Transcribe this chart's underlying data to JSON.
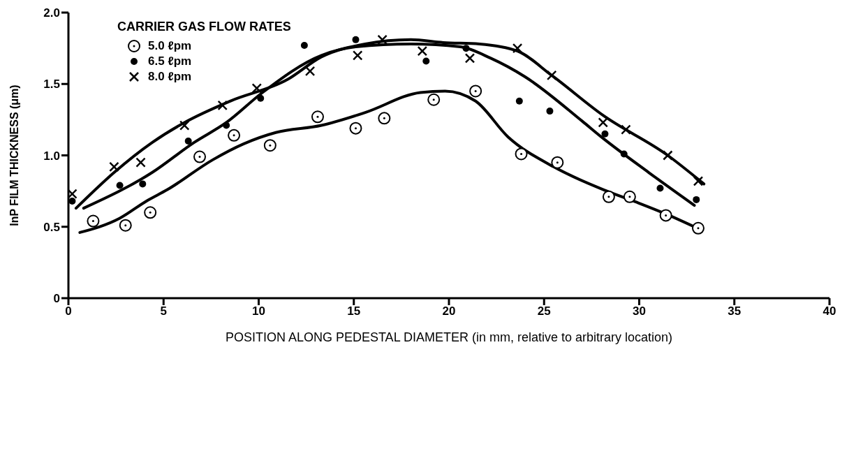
{
  "chart_data": {
    "type": "scatter",
    "xlabel": "POSITION ALONG PEDESTAL DIAMETER (in mm, relative to arbitrary location)",
    "ylabel": "InP FILM THICKNESS (μm)",
    "legend_title": "CARRIER GAS FLOW RATES",
    "legend": "top left",
    "grid": false,
    "xlim": [
      0,
      40
    ],
    "xticks": [
      0,
      5,
      10,
      15,
      20,
      25,
      30,
      35,
      40
    ],
    "ylim": [
      0,
      2
    ],
    "yticks": [
      0,
      0.5,
      {
        "value": 1,
        "label": "1.0"
      },
      1.5,
      {
        "value": 2,
        "label": "2.0"
      }
    ],
    "series": [
      {
        "name": "5.0 ℓpm",
        "color": "#000000",
        "marker": "circle-dot",
        "x": [
          1.3,
          3.0,
          4.3,
          6.9,
          8.7,
          10.6,
          13.1,
          15.1,
          16.6,
          19.2,
          21.4,
          23.8,
          25.7,
          28.4,
          29.5,
          31.4,
          33.1
        ],
        "values": [
          0.54,
          0.51,
          0.6,
          0.99,
          1.14,
          1.07,
          1.27,
          1.19,
          1.26,
          1.39,
          1.45,
          1.01,
          0.95,
          0.71,
          0.71,
          0.58,
          0.49
        ]
      },
      {
        "name": "6.5 ℓpm",
        "color": "#000000",
        "marker": "circle",
        "x": [
          0.2,
          2.7,
          3.9,
          6.3,
          8.3,
          10.1,
          12.4,
          15.1,
          18.8,
          20.9,
          23.7,
          25.3,
          28.2,
          29.2,
          31.1,
          33.0
        ],
        "values": [
          0.68,
          0.79,
          0.8,
          1.1,
          1.21,
          1.4,
          1.77,
          1.81,
          1.66,
          1.75,
          1.38,
          1.31,
          1.15,
          1.01,
          0.77,
          0.69
        ]
      },
      {
        "name": "8.0 ℓpm",
        "color": "#000000",
        "marker": "cross",
        "x": [
          0.2,
          2.4,
          3.8,
          6.1,
          8.1,
          9.9,
          12.7,
          15.2,
          16.5,
          18.6,
          21.1,
          23.6,
          25.4,
          28.1,
          29.3,
          31.5,
          33.1
        ],
        "values": [
          0.73,
          0.92,
          0.95,
          1.21,
          1.35,
          1.47,
          1.59,
          1.7,
          1.81,
          1.73,
          1.68,
          1.75,
          1.56,
          1.23,
          1.18,
          1.0,
          0.82
        ]
      },
      {
        "type": "line",
        "color": "#000000",
        "marker": "none",
        "x": [
          0.6,
          2.7,
          4.1,
          5.2,
          7.6,
          9.2,
          10.9,
          13.3,
          15.6,
          18.5,
          19.8,
          21.4,
          23.1,
          25.5,
          28.3,
          29.9,
          31.4,
          32.9
        ],
        "values": [
          0.46,
          0.56,
          0.68,
          0.76,
          0.97,
          1.08,
          1.16,
          1.21,
          1.3,
          1.44,
          1.45,
          1.38,
          1.13,
          0.92,
          0.75,
          0.67,
          0.59,
          0.5
        ]
      },
      {
        "type": "line",
        "color": "#000000",
        "marker": "none",
        "x": [
          0.8,
          4.4,
          6.6,
          8.3,
          10.2,
          13.3,
          15.1,
          18.0,
          20.6,
          22.2,
          24.0,
          27.0,
          28.0,
          30.5,
          32.9
        ],
        "values": [
          0.63,
          0.88,
          1.09,
          1.23,
          1.44,
          1.7,
          1.76,
          1.78,
          1.76,
          1.68,
          1.55,
          1.24,
          1.13,
          0.88,
          0.65
        ]
      },
      {
        "type": "line",
        "color": "#000000",
        "marker": "none",
        "x": [
          0.4,
          2.4,
          4.4,
          6.1,
          8.5,
          11.5,
          13.3,
          15.6,
          18.0,
          19.7,
          21.6,
          23.6,
          25.4,
          28.1,
          31.5,
          33.4
        ],
        "values": [
          0.63,
          0.88,
          1.09,
          1.23,
          1.38,
          1.53,
          1.69,
          1.78,
          1.81,
          1.79,
          1.78,
          1.73,
          1.56,
          1.28,
          1.0,
          0.8
        ]
      }
    ]
  }
}
